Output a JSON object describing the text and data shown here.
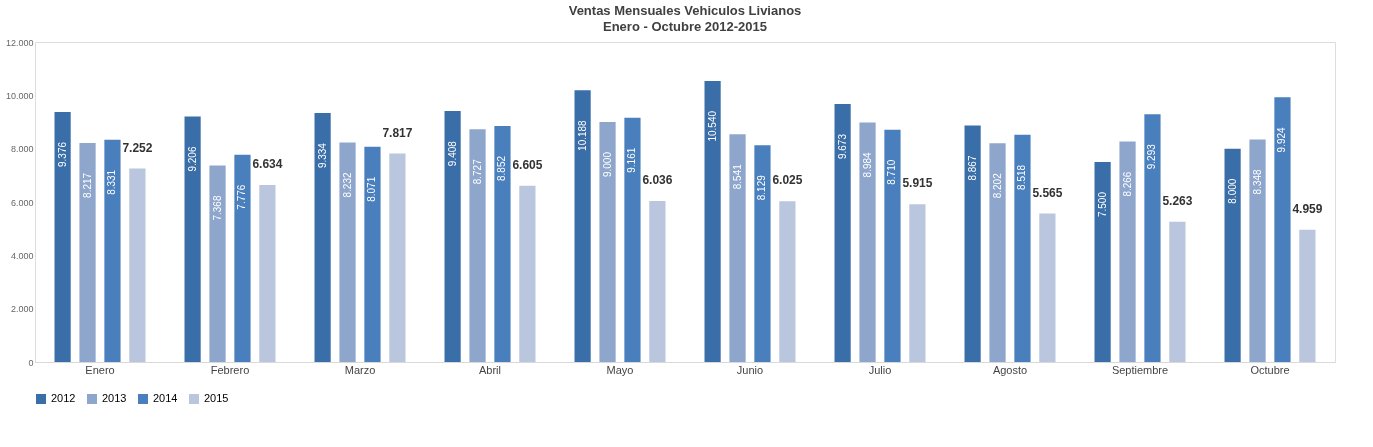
{
  "chart_data": {
    "type": "bar",
    "title": "Ventas Mensuales Vehiculos Livianos",
    "subtitle": "Enero - Octubre 2012-2015",
    "categories": [
      "Enero",
      "Febrero",
      "Marzo",
      "Abril",
      "Mayo",
      "Junio",
      "Julio",
      "Agosto",
      "Septiembre",
      "Octubre"
    ],
    "series": [
      {
        "name": "2012",
        "color": "#3a6ea8",
        "values": [
          9376,
          9206,
          9334,
          9408,
          10188,
          10540,
          9673,
          8867,
          7500,
          8000
        ],
        "value_labels": [
          "9.376",
          "9.206",
          "9.334",
          "9.408",
          "10.188",
          "10.540",
          "9.673",
          "8.867",
          "7.500",
          "8.000"
        ]
      },
      {
        "name": "2013",
        "color": "#8ea6cc",
        "values": [
          8217,
          7368,
          8232,
          8727,
          9000,
          8541,
          8984,
          8202,
          8266,
          8348
        ],
        "value_labels": [
          "8.217",
          "7.368",
          "8.232",
          "8.727",
          "9.000",
          "8.541",
          "8.984",
          "8.202",
          "8.266",
          "8.348"
        ]
      },
      {
        "name": "2014",
        "color": "#4a7fbd",
        "values": [
          8331,
          7776,
          8071,
          8852,
          9161,
          8129,
          8710,
          8518,
          9293,
          9924
        ],
        "value_labels": [
          "8.331",
          "7.776",
          "8.071",
          "8.852",
          "9.161",
          "8.129",
          "8.710",
          "8.518",
          "9.293",
          "9.924"
        ]
      },
      {
        "name": "2015",
        "color": "#b9c6de",
        "values": [
          7252,
          6634,
          7817,
          6605,
          6036,
          6025,
          5915,
          5565,
          5263,
          4959
        ],
        "value_labels": [
          "7.252",
          "6.634",
          "7.817",
          "6.605",
          "6.036",
          "6.025",
          "5.915",
          "5.565",
          "5.263",
          "4.959"
        ]
      }
    ],
    "ylim": [
      0,
      12000
    ],
    "yticks": [
      {
        "value": 0,
        "label": "0"
      },
      {
        "value": 2000,
        "label": "2.000"
      },
      {
        "value": 4000,
        "label": "4.000"
      },
      {
        "value": 6000,
        "label": "6.000"
      },
      {
        "value": 8000,
        "label": "8.000"
      },
      {
        "value": 10000,
        "label": "10.000"
      },
      {
        "value": 12000,
        "label": "12.000"
      }
    ],
    "grid": false,
    "legend": "bottom"
  }
}
